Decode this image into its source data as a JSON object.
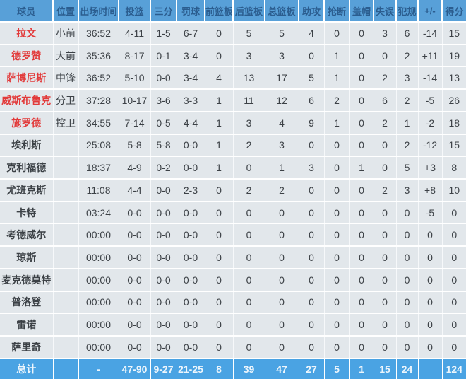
{
  "table": {
    "columns": [
      "球员",
      "位置",
      "出场时间",
      "投篮",
      "三分",
      "罚球",
      "前篮板",
      "后篮板",
      "总篮板",
      "助攻",
      "抢断",
      "盖帽",
      "失误",
      "犯规",
      "+/-",
      "得分"
    ],
    "rows": [
      {
        "name": "拉文",
        "starter": true,
        "cells": [
          "小前",
          "36:52",
          "4-11",
          "1-5",
          "6-7",
          "0",
          "5",
          "5",
          "4",
          "0",
          "0",
          "3",
          "6",
          "-14",
          "15"
        ]
      },
      {
        "name": "德罗赞",
        "starter": true,
        "cells": [
          "大前",
          "35:36",
          "8-17",
          "0-1",
          "3-4",
          "0",
          "3",
          "3",
          "0",
          "1",
          "0",
          "0",
          "2",
          "+11",
          "19"
        ]
      },
      {
        "name": "萨博尼斯",
        "starter": true,
        "cells": [
          "中锋",
          "36:52",
          "5-10",
          "0-0",
          "3-4",
          "4",
          "13",
          "17",
          "5",
          "1",
          "0",
          "2",
          "3",
          "-14",
          "13"
        ]
      },
      {
        "name": "威斯布鲁克",
        "starter": true,
        "cells": [
          "分卫",
          "37:28",
          "10-17",
          "3-6",
          "3-3",
          "1",
          "11",
          "12",
          "6",
          "2",
          "0",
          "6",
          "2",
          "-5",
          "26"
        ]
      },
      {
        "name": "施罗德",
        "starter": true,
        "cells": [
          "控卫",
          "34:55",
          "7-14",
          "0-5",
          "4-4",
          "1",
          "3",
          "4",
          "9",
          "1",
          "0",
          "2",
          "1",
          "-2",
          "18"
        ]
      },
      {
        "name": "埃利斯",
        "starter": false,
        "cells": [
          "",
          "25:08",
          "5-8",
          "5-8",
          "0-0",
          "1",
          "2",
          "3",
          "0",
          "0",
          "0",
          "0",
          "2",
          "-12",
          "15"
        ]
      },
      {
        "name": "克利福德",
        "starter": false,
        "cells": [
          "",
          "18:37",
          "4-9",
          "0-2",
          "0-0",
          "1",
          "0",
          "1",
          "3",
          "0",
          "1",
          "0",
          "5",
          "+3",
          "8"
        ]
      },
      {
        "name": "尤班克斯",
        "starter": false,
        "cells": [
          "",
          "11:08",
          "4-4",
          "0-0",
          "2-3",
          "0",
          "2",
          "2",
          "0",
          "0",
          "0",
          "2",
          "3",
          "+8",
          "10"
        ]
      },
      {
        "name": "卡特",
        "starter": false,
        "cells": [
          "",
          "03:24",
          "0-0",
          "0-0",
          "0-0",
          "0",
          "0",
          "0",
          "0",
          "0",
          "0",
          "0",
          "0",
          "-5",
          "0"
        ]
      },
      {
        "name": "考德威尔",
        "starter": false,
        "cells": [
          "",
          "00:00",
          "0-0",
          "0-0",
          "0-0",
          "0",
          "0",
          "0",
          "0",
          "0",
          "0",
          "0",
          "0",
          "0",
          "0"
        ]
      },
      {
        "name": "琼斯",
        "starter": false,
        "cells": [
          "",
          "00:00",
          "0-0",
          "0-0",
          "0-0",
          "0",
          "0",
          "0",
          "0",
          "0",
          "0",
          "0",
          "0",
          "0",
          "0"
        ]
      },
      {
        "name": "麦克德莫特",
        "starter": false,
        "cells": [
          "",
          "00:00",
          "0-0",
          "0-0",
          "0-0",
          "0",
          "0",
          "0",
          "0",
          "0",
          "0",
          "0",
          "0",
          "0",
          "0"
        ]
      },
      {
        "name": "普洛登",
        "starter": false,
        "cells": [
          "",
          "00:00",
          "0-0",
          "0-0",
          "0-0",
          "0",
          "0",
          "0",
          "0",
          "0",
          "0",
          "0",
          "0",
          "0",
          "0"
        ]
      },
      {
        "name": "雷诺",
        "starter": false,
        "cells": [
          "",
          "00:00",
          "0-0",
          "0-0",
          "0-0",
          "0",
          "0",
          "0",
          "0",
          "0",
          "0",
          "0",
          "0",
          "0",
          "0"
        ]
      },
      {
        "name": "萨里奇",
        "starter": false,
        "cells": [
          "",
          "00:00",
          "0-0",
          "0-0",
          "0-0",
          "0",
          "0",
          "0",
          "0",
          "0",
          "0",
          "0",
          "0",
          "0",
          "0"
        ]
      }
    ],
    "total": {
      "label": "总计",
      "cells": [
        "",
        "-",
        "47-90",
        "9-27",
        "21-25",
        "8",
        "39",
        "47",
        "27",
        "5",
        "1",
        "15",
        "24",
        "",
        "124"
      ]
    },
    "colors": {
      "header_bg": "#58a0d8",
      "header_text": "#2b5d8f",
      "row_bg": "#e2e7eb",
      "cell_text": "#3c4146",
      "player_name": "#3c4146",
      "starter_name": "#e23a3a",
      "total_bg": "#4aa3e3",
      "total_text": "#ecf5fc",
      "divider": "#ffffff"
    }
  }
}
